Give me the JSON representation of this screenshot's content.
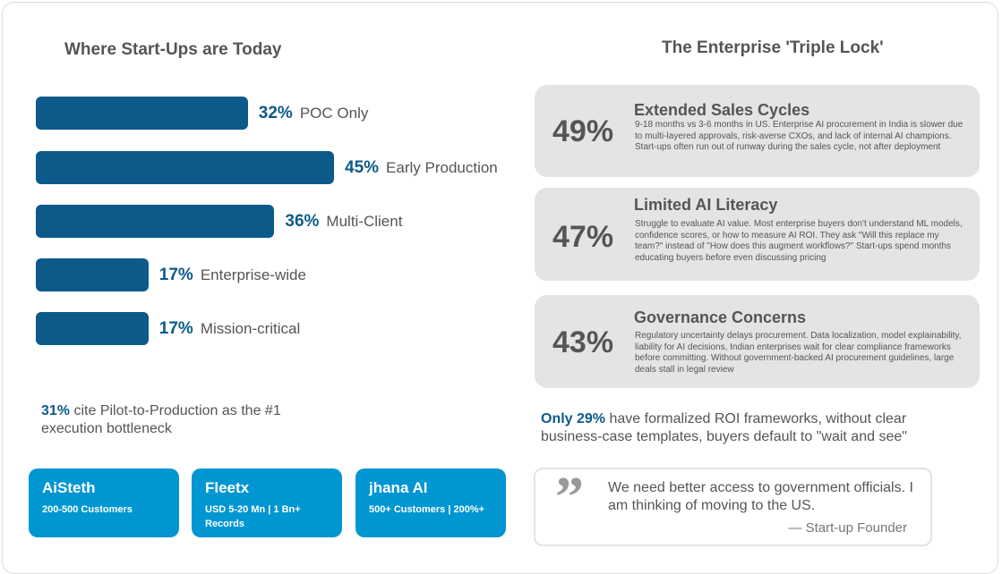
{
  "left": {
    "title": "Where Start-Ups are Today",
    "bars": [
      {
        "pct": "32%",
        "value": 32,
        "label": "POC Only"
      },
      {
        "pct": "45%",
        "value": 45,
        "label": "Early Production"
      },
      {
        "pct": "36%",
        "value": 36,
        "label": "Multi-Client"
      },
      {
        "pct": "17%",
        "value": 17,
        "label": "Enterprise-wide"
      },
      {
        "pct": "17%",
        "value": 17,
        "label": "Mission-critical"
      }
    ],
    "note_pct": "31%",
    "note_text": " cite Pilot-to-Production as the #1 execution bottleneck",
    "cards": [
      {
        "name": "AiSteth",
        "stat": "200-500 Customers"
      },
      {
        "name": "Fleetx",
        "stat": "USD 5-20 Mn | 1 Bn+ Records"
      },
      {
        "name": "jhana AI",
        "stat": "500+ Customers | 200%+"
      }
    ]
  },
  "right": {
    "title": "The Enterprise 'Triple Lock'",
    "locks": [
      {
        "pct": "49%",
        "title": "Extended Sales Cycles",
        "desc": "9-18 months vs 3-6 months in US.  Enterprise AI procurement in India is slower due to multi-layered approvals, risk-averse CXOs, and lack of internal AI champions. Start-ups often run out of runway during the sales cycle, not after deployment"
      },
      {
        "pct": "47%",
        "title": "Limited AI Literacy",
        "desc": "Struggle to evaluate AI value. Most enterprise buyers don't understand ML models, confidence scores, or how to measure AI ROI. They ask \"Will this replace my team?\" instead of \"How does this augment workflows?\" Start-ups spend months educating buyers  before even discussing pricing"
      },
      {
        "pct": "43%",
        "title": "Governance Concerns",
        "desc": "Regulatory uncertainty delays procurement. Data localization, model explainability, liability for AI decisions, Indian enterprises wait for clear compliance frameworks before committing. Without government-backed AI procurement guidelines, large deals stall in legal review"
      }
    ],
    "note_strong": "Only 29%",
    "note_text": " have formalized ROI frameworks, without clear business-case templates, buyers default to \"wait and see\"",
    "quote": "We need better access to government officials. I am thinking of moving to the US.",
    "attribution": "— Start-up Founder"
  },
  "colors": {
    "bar": "#0b5a89",
    "card": "#0096d1",
    "panel": "#e4e4e4"
  }
}
